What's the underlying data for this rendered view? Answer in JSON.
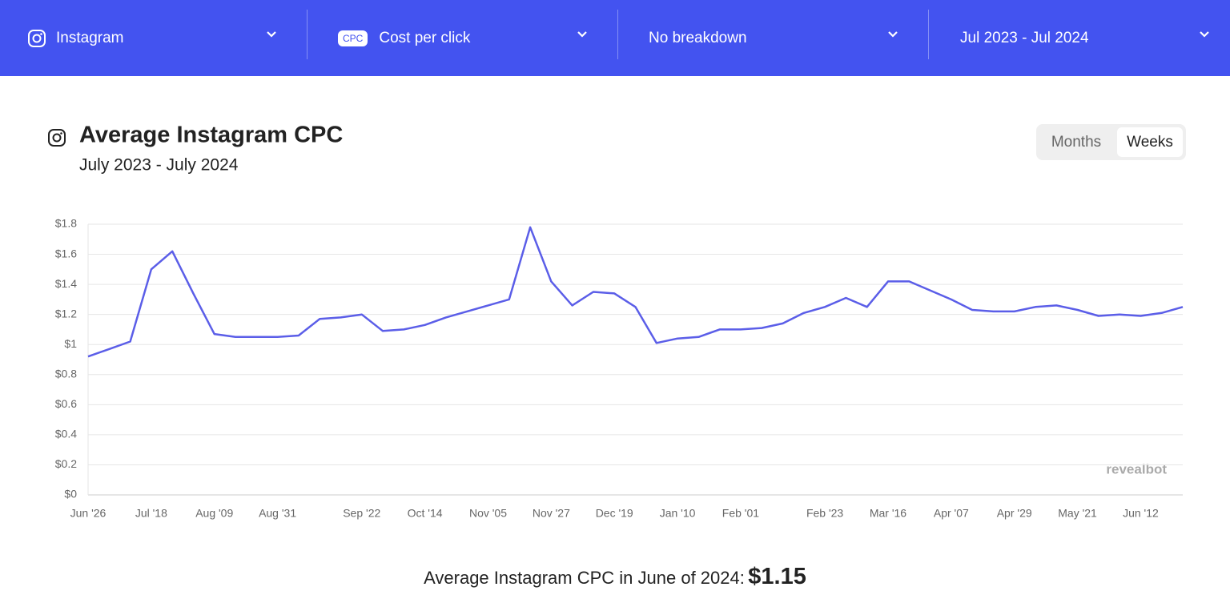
{
  "header": {
    "dropdowns": [
      {
        "label": "Instagram"
      },
      {
        "badge": "CPC",
        "label": "Cost per click"
      },
      {
        "label": "No breakdown"
      },
      {
        "label": "Jul 2023 - Jul 2024"
      }
    ]
  },
  "toggle": [
    "Months",
    "Weeks"
  ],
  "watermark": "revealbot",
  "footer": {
    "text": "Average Instagram CPC in June of 2024:",
    "value": "$1.15"
  },
  "chart_data": {
    "type": "line",
    "title": "Average Instagram CPC",
    "subtitle": "July 2023 - July 2024",
    "categories": [
      "Jun '26",
      null,
      null,
      "Jul '18",
      null,
      null,
      "Aug '09",
      null,
      null,
      "Aug '31",
      null,
      null,
      null,
      "Sep '22",
      null,
      null,
      "Oct '14",
      null,
      null,
      "Nov '05",
      null,
      null,
      "Nov '27",
      null,
      null,
      "Dec '19",
      null,
      null,
      "Jan '10",
      null,
      null,
      "Feb '01",
      null,
      null,
      null,
      "Feb '23",
      null,
      null,
      "Mar '16",
      null,
      null,
      "Apr '07",
      null,
      null,
      "Apr '29",
      null,
      null,
      "May '21",
      null,
      null,
      "Jun '12",
      null,
      null
    ],
    "values": [
      0.92,
      0.97,
      1.02,
      1.5,
      1.62,
      1.34,
      1.07,
      1.05,
      1.05,
      1.05,
      1.06,
      1.17,
      1.18,
      1.2,
      1.09,
      1.1,
      1.13,
      1.18,
      1.22,
      1.26,
      1.3,
      1.78,
      1.42,
      1.26,
      1.35,
      1.34,
      1.25,
      1.01,
      1.04,
      1.05,
      1.1,
      1.1,
      1.11,
      1.14,
      1.21,
      1.25,
      1.31,
      1.25,
      1.42,
      1.42,
      1.36,
      1.3,
      1.23,
      1.22,
      1.22,
      1.25,
      1.26,
      1.23,
      1.19,
      1.2,
      1.19,
      1.21,
      1.25
    ],
    "color": "#5b5ee8",
    "ylim": [
      0,
      1.8
    ],
    "yticks": [
      {
        "value": 0,
        "label": "$0"
      },
      {
        "value": 0.2,
        "label": "$0.2"
      },
      {
        "value": 0.4,
        "label": "$0.4"
      },
      {
        "value": 0.6,
        "label": "$0.6"
      },
      {
        "value": 0.8,
        "label": "$0.8"
      },
      {
        "value": 1,
        "label": "$1"
      },
      {
        "value": 1.2,
        "label": "$1.2"
      },
      {
        "value": 1.4,
        "label": "$1.4"
      },
      {
        "value": 1.6,
        "label": "$1.6"
      },
      {
        "value": 1.8,
        "label": "$1.8"
      }
    ],
    "grid": true
  }
}
